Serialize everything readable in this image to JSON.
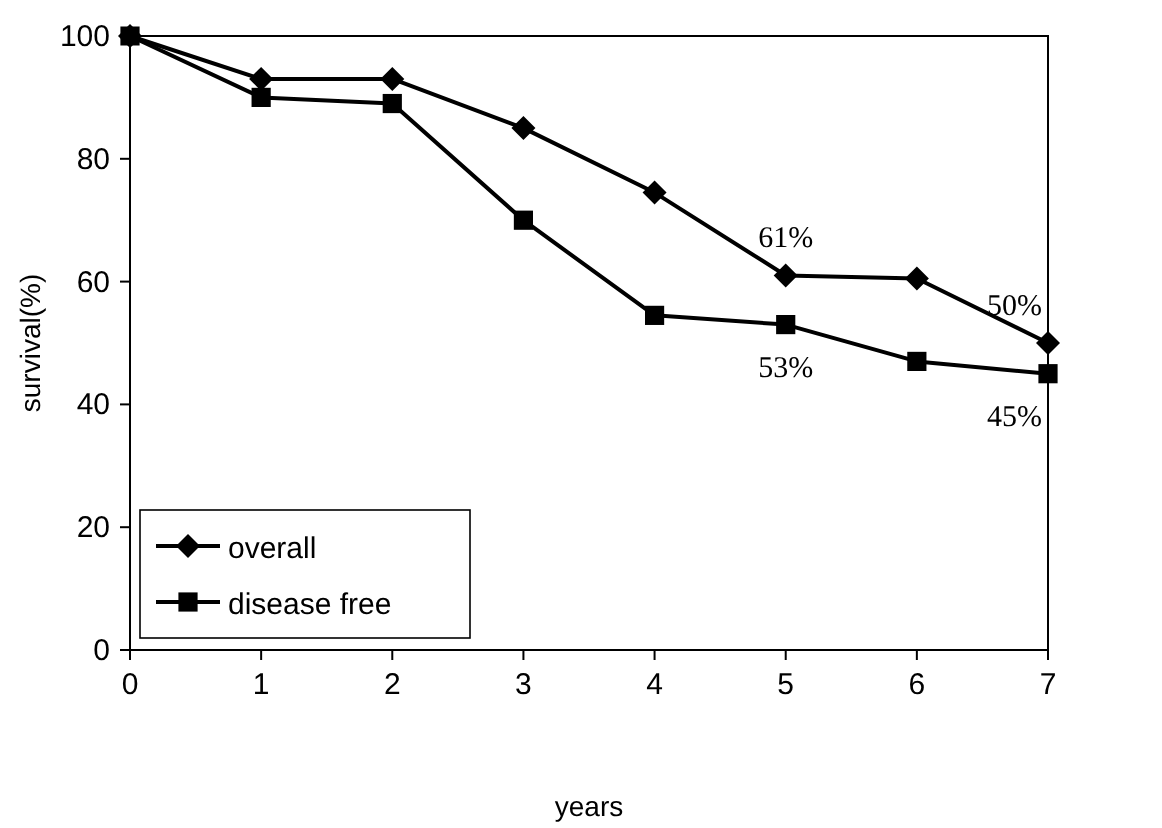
{
  "chart_data": {
    "type": "line",
    "xlabel": "years",
    "ylabel": "survival(%)",
    "x": [
      0,
      1,
      2,
      3,
      4,
      5,
      6,
      7
    ],
    "series": [
      {
        "name": "overall",
        "color": "#000000",
        "marker": "diamond",
        "values": [
          100,
          93,
          93,
          85,
          74.5,
          61,
          60.5,
          50
        ],
        "value_labels": [
          null,
          null,
          null,
          null,
          null,
          "61%",
          null,
          "50%"
        ]
      },
      {
        "name": "disease free",
        "color": "#000000",
        "marker": "square",
        "values": [
          100,
          90,
          89,
          70,
          54.5,
          53,
          47,
          45
        ],
        "value_labels": [
          null,
          null,
          null,
          null,
          null,
          "53%",
          null,
          "45%"
        ]
      }
    ],
    "xlim": [
      0,
      7
    ],
    "xticks": [
      0,
      1,
      2,
      3,
      4,
      5,
      6,
      7
    ],
    "ylim": [
      0,
      100
    ],
    "yticks": [
      0,
      20,
      40,
      60,
      80,
      100
    ],
    "grid": false,
    "legend": "bottom left",
    "line_style": "solid"
  }
}
